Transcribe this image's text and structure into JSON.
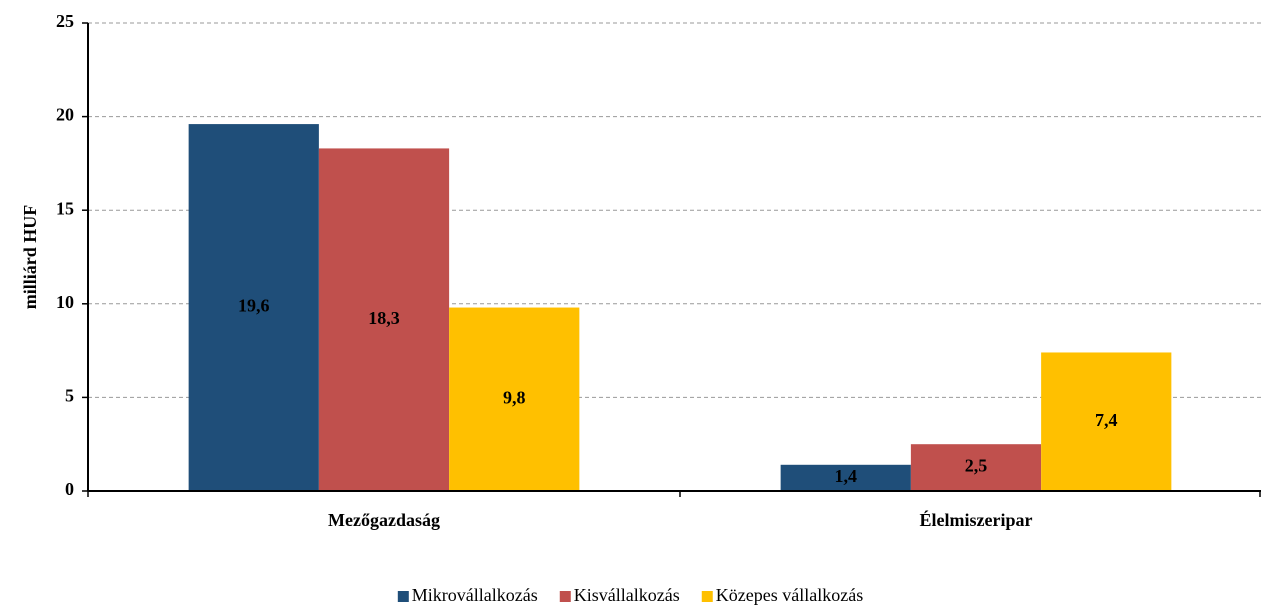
{
  "chart_data": {
    "type": "bar",
    "y_label": "milliárd  HUF",
    "categories": [
      "Mezőgazdaság",
      "Élelmiszeripar"
    ],
    "series": [
      {
        "name": "Mikrovállalkozás",
        "color": "#1f4e79",
        "values": [
          19.6,
          1.4
        ],
        "value_labels": [
          "19,6",
          "1,4"
        ]
      },
      {
        "name": "Kisvállalkozás",
        "color": "#c0504d",
        "values": [
          18.3,
          2.5
        ],
        "value_labels": [
          "18,3",
          "2,5"
        ]
      },
      {
        "name": "Közepes vállalkozás",
        "color": "#ffc000",
        "values": [
          9.8,
          7.4
        ],
        "value_labels": [
          "9,8",
          "7,4"
        ]
      }
    ],
    "ylim": [
      0,
      25
    ],
    "yticks": [
      0,
      5,
      10,
      15,
      20,
      25
    ],
    "grid": true,
    "legend": "bottom"
  }
}
